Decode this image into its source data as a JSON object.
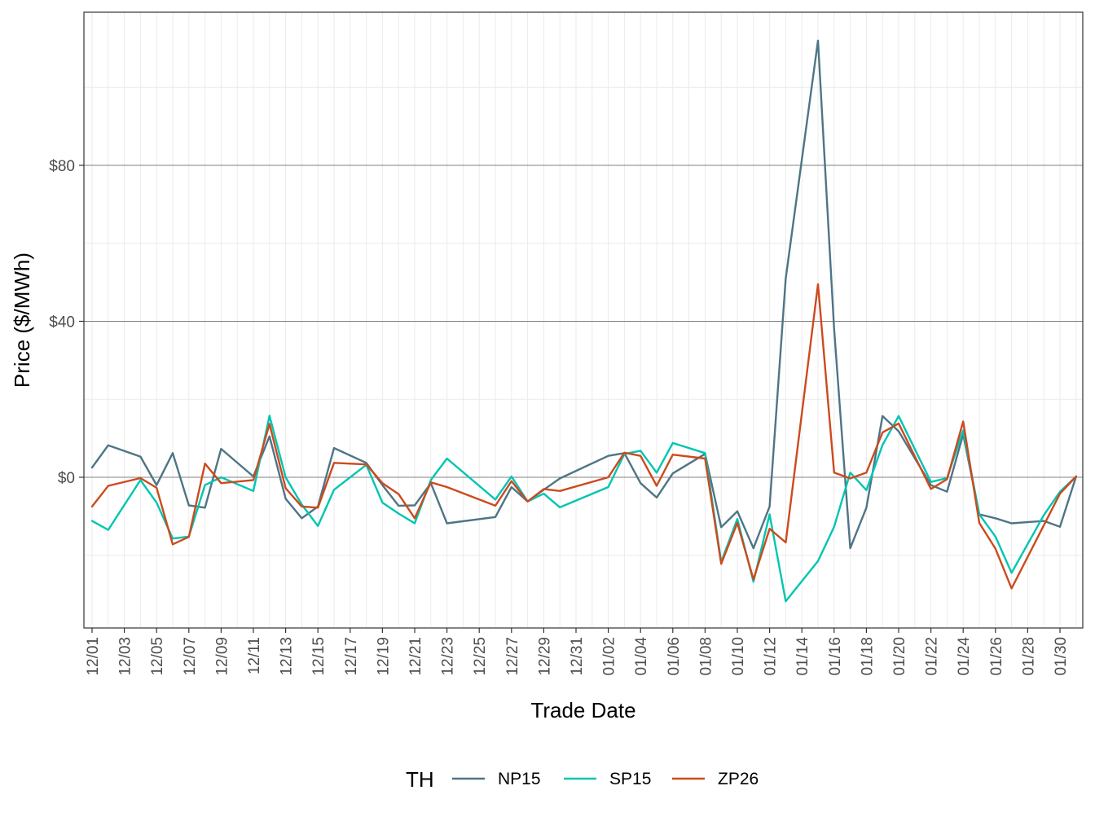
{
  "chart_data": {
    "type": "line",
    "xlabel": "Trade Date",
    "ylabel": "Price ($/MWh)",
    "legend_title": "TH",
    "legend_position": "bottom",
    "grid": true,
    "ylim": [
      -38,
      120
    ],
    "y_ticks": [
      0,
      40,
      80
    ],
    "y_tick_labels": [
      "$0",
      "$40",
      "$80"
    ],
    "x_tick_labels": [
      "12/01",
      "12/03",
      "12/05",
      "12/07",
      "12/09",
      "12/11",
      "12/13",
      "12/15",
      "12/17",
      "12/19",
      "12/21",
      "12/23",
      "12/25",
      "12/27",
      "12/29",
      "12/31",
      "01/02",
      "01/04",
      "01/06",
      "01/08",
      "01/10",
      "01/12",
      "01/14",
      "01/16",
      "01/18",
      "01/20",
      "01/22",
      "01/24",
      "01/26",
      "01/28",
      "01/30"
    ],
    "x": [
      "12/01",
      "12/02",
      "12/04",
      "12/05",
      "12/06",
      "12/07",
      "12/08",
      "12/09",
      "12/11",
      "12/12",
      "12/13",
      "12/14",
      "12/15",
      "12/16",
      "12/18",
      "12/19",
      "12/20",
      "12/21",
      "12/22",
      "12/23",
      "12/26",
      "12/27",
      "12/28",
      "12/29",
      "12/30",
      "01/02",
      "01/03",
      "01/04",
      "01/05",
      "01/06",
      "01/08",
      "01/09",
      "01/10",
      "01/11",
      "01/12",
      "01/13",
      "01/15",
      "01/16",
      "01/17",
      "01/18",
      "01/19",
      "01/20",
      "01/22",
      "01/23",
      "01/24",
      "01/25",
      "01/26",
      "01/27",
      "01/29",
      "01/30",
      "01/31"
    ],
    "series": [
      {
        "name": "NP15",
        "color": "#4e7585",
        "values": [
          2.5,
          8.2,
          5.3,
          -2.0,
          6.2,
          -7.2,
          -7.8,
          7.3,
          0.2,
          10.5,
          -5.5,
          -10.5,
          -7.5,
          7.5,
          3.7,
          -2.0,
          -7.3,
          -7.2,
          -1.5,
          -11.8,
          -10.2,
          -2.5,
          -6.2,
          -3.2,
          -0.3,
          5.5,
          6.2,
          -1.5,
          -5.2,
          1.0,
          6.0,
          -12.8,
          -8.7,
          -18.2,
          -7.5,
          51.0,
          112.0,
          38.0,
          -18.2,
          -7.8,
          15.7,
          11.8,
          -2.0,
          -3.7,
          11.0,
          -9.5,
          -10.5,
          -11.8,
          -11.2,
          -12.7,
          0.2
        ]
      },
      {
        "name": "SP15",
        "color": "#00c5b2",
        "values": [
          -11.2,
          -13.5,
          -0.7,
          -6.5,
          -15.7,
          -15.2,
          -2.0,
          0.0,
          -3.5,
          15.8,
          0.0,
          -7.0,
          -12.5,
          -3.2,
          3.2,
          -6.5,
          -9.3,
          -11.8,
          -0.7,
          4.8,
          -5.7,
          0.2,
          -6.2,
          -4.2,
          -7.7,
          -2.5,
          6.0,
          6.8,
          1.2,
          8.8,
          6.2,
          -21.7,
          -10.7,
          -26.8,
          -9.5,
          -31.8,
          -21.5,
          -12.7,
          1.2,
          -3.3,
          8.3,
          15.7,
          -1.2,
          -0.2,
          12.0,
          -9.5,
          -15.2,
          -24.5,
          -9.7,
          -3.7,
          0.2
        ]
      },
      {
        "name": "ZP26",
        "color": "#cc4a1e",
        "values": [
          -7.5,
          -2.2,
          -0.2,
          -2.7,
          -17.2,
          -15.3,
          3.5,
          -1.5,
          -0.7,
          13.7,
          -2.8,
          -7.5,
          -7.8,
          3.7,
          3.3,
          -1.5,
          -4.3,
          -10.5,
          -1.3,
          -2.5,
          -7.3,
          -1.0,
          -6.2,
          -3.0,
          -3.5,
          0.0,
          6.3,
          5.5,
          -2.2,
          5.8,
          4.8,
          -22.2,
          -11.7,
          -26.2,
          -13.2,
          -16.7,
          49.5,
          1.2,
          -0.3,
          1.2,
          11.5,
          13.8,
          -3.0,
          -0.5,
          14.3,
          -11.7,
          -18.3,
          -28.5,
          -12.3,
          -4.2,
          0.2
        ]
      }
    ]
  }
}
